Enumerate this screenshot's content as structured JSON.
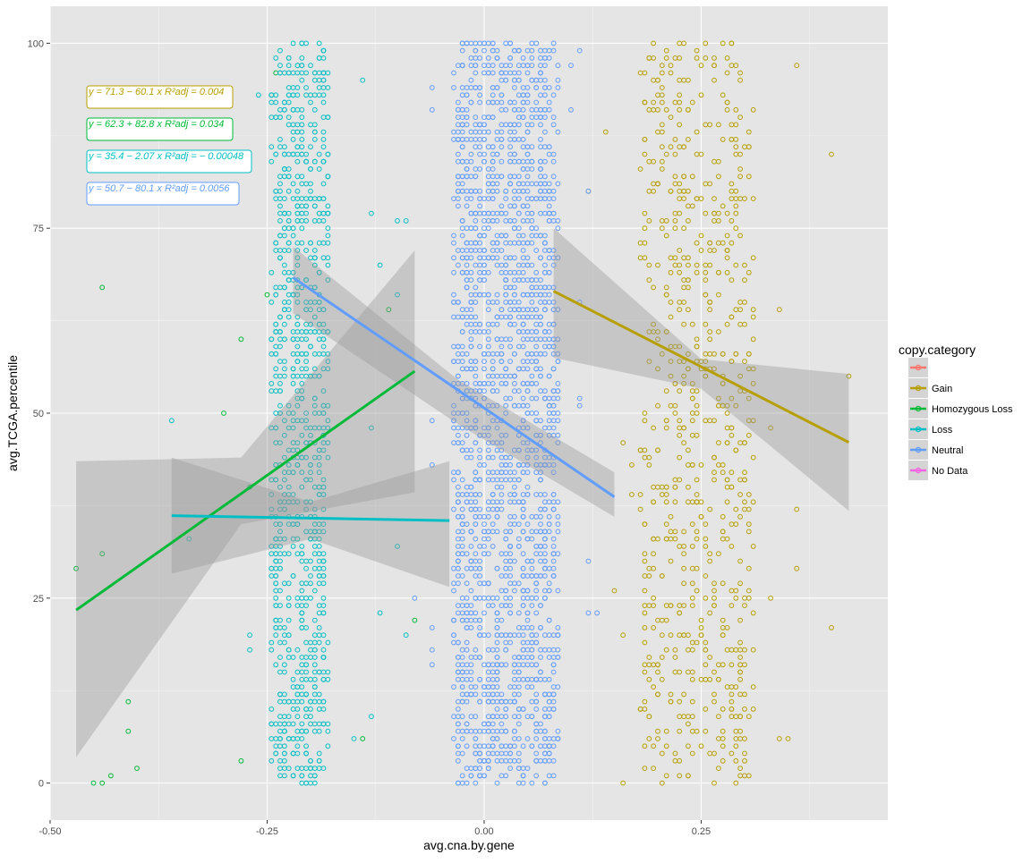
{
  "chart_data": {
    "type": "scatter",
    "xlabel": "avg.cna.by.gene",
    "ylabel": "avg.TCGA.percentile",
    "xlim": [
      -0.5,
      0.465
    ],
    "ylim": [
      -5,
      105
    ],
    "x_ticks": [
      -0.5,
      -0.25,
      0.0,
      0.25
    ],
    "x_tick_labels": [
      "-0.50",
      "-0.25",
      "0.00",
      "0.25"
    ],
    "y_ticks": [
      0,
      25,
      50,
      75,
      100
    ],
    "y_tick_labels": [
      "0",
      "25",
      "50",
      "75",
      "100"
    ],
    "grid": true,
    "background": "#e5e5e5",
    "legend": {
      "title": "copy.category",
      "position": "right",
      "entries": [
        {
          "label": "",
          "color": "#F8766D"
        },
        {
          "label": "Gain",
          "color": "#B79F00"
        },
        {
          "label": "Homozygous Loss",
          "color": "#00BA38"
        },
        {
          "label": "Loss",
          "color": "#00BFC4"
        },
        {
          "label": "Neutral",
          "color": "#619CFF"
        },
        {
          "label": "No Data",
          "color": "#F564E3"
        }
      ]
    },
    "equations": [
      {
        "series": "Gain",
        "eq": "y = 71.3 − 60.1 x",
        "r2_label": "R²adj",
        "r2": "= 0.004"
      },
      {
        "series": "Homozygous Loss",
        "eq": "y = 62.3 + 82.8 x",
        "r2_label": "R²adj",
        "r2": "= 0.034"
      },
      {
        "series": "Loss",
        "eq": "y = 35.4 − 2.07 x",
        "r2_label": "R²adj",
        "r2": "= − 0.00048"
      },
      {
        "series": "Neutral",
        "eq": "y = 50.7 − 80.1 x",
        "r2_label": "R²adj",
        "r2": "= 0.0056"
      }
    ],
    "series": [
      {
        "name": "Gain",
        "color": "#B79F00",
        "fit": {
          "intercept": 71.3,
          "slope": -60.1,
          "x_range": [
            0.08,
            0.42
          ]
        },
        "band": {
          "x": [
            0.08,
            0.25,
            0.42
          ],
          "lo": [
            57.5,
            53.3,
            36.8
          ],
          "hi": [
            75.0,
            57.3,
            55.3
          ]
        },
        "point_cloud": {
          "x_range": [
            0.18,
            0.31
          ],
          "y_range": [
            0,
            100
          ],
          "n": 700
        },
        "points": [
          [
            0.14,
            88
          ],
          [
            0.16,
            46
          ],
          [
            0.12,
            80
          ],
          [
            0.17,
            43
          ],
          [
            0.15,
            26
          ],
          [
            0.16,
            0
          ],
          [
            0.36,
            37
          ],
          [
            0.36,
            97
          ],
          [
            0.4,
            85
          ],
          [
            0.4,
            21
          ],
          [
            0.42,
            55
          ],
          [
            0.36,
            29
          ],
          [
            0.34,
            6
          ],
          [
            0.35,
            6
          ],
          [
            0.3,
            3
          ],
          [
            0.34,
            64
          ],
          [
            0.33,
            48
          ],
          [
            0.33,
            25
          ],
          [
            0.17,
            39
          ],
          [
            0.16,
            20
          ]
        ]
      },
      {
        "name": "Homozygous Loss",
        "color": "#00BA38",
        "fit": {
          "intercept": 62.3,
          "slope": 82.8,
          "x_range": [
            -0.47,
            -0.08
          ]
        },
        "band": {
          "x": [
            -0.47,
            -0.28,
            -0.08
          ],
          "lo": [
            3.5,
            35.0,
            39.3
          ],
          "hi": [
            43.5,
            44.0,
            72.0
          ]
        },
        "points": [
          [
            -0.47,
            29
          ],
          [
            -0.44,
            67
          ],
          [
            -0.44,
            31
          ],
          [
            -0.41,
            11
          ],
          [
            -0.41,
            7
          ],
          [
            -0.4,
            2
          ],
          [
            -0.43,
            1
          ],
          [
            -0.45,
            0
          ],
          [
            -0.44,
            0
          ],
          [
            -0.27,
            40
          ],
          [
            -0.28,
            60
          ],
          [
            -0.28,
            3
          ],
          [
            -0.3,
            50
          ],
          [
            -0.24,
            96
          ],
          [
            -0.11,
            64
          ],
          [
            -0.08,
            22
          ],
          [
            -0.14,
            6
          ],
          [
            -0.2,
            33
          ],
          [
            -0.25,
            66
          ]
        ]
      },
      {
        "name": "Loss",
        "color": "#00BFC4",
        "fit": {
          "intercept": 35.4,
          "slope": -2.07,
          "x_range": [
            -0.36,
            -0.04
          ]
        },
        "band": {
          "x": [
            -0.36,
            -0.2,
            -0.04
          ],
          "lo": [
            28.3,
            33.0,
            26.5
          ],
          "hi": [
            44.0,
            38.0,
            43.5
          ]
        },
        "point_cloud": {
          "x_range": [
            -0.245,
            -0.18
          ],
          "y_range": [
            0,
            100
          ],
          "n": 900
        },
        "points": [
          [
            -0.36,
            49
          ],
          [
            -0.34,
            33
          ],
          [
            -0.13,
            77
          ],
          [
            -0.12,
            70
          ],
          [
            -0.1,
            76
          ],
          [
            -0.09,
            76
          ],
          [
            -0.1,
            66
          ],
          [
            -0.29,
            85
          ],
          [
            -0.26,
            93
          ],
          [
            -0.1,
            32
          ],
          [
            -0.09,
            20
          ],
          [
            -0.12,
            23
          ],
          [
            -0.13,
            48
          ],
          [
            -0.14,
            95
          ],
          [
            -0.27,
            18
          ],
          [
            -0.27,
            20
          ],
          [
            -0.15,
            6
          ],
          [
            -0.13,
            9
          ]
        ]
      },
      {
        "name": "Neutral",
        "color": "#619CFF",
        "fit": {
          "intercept": 50.7,
          "slope": -80.1,
          "x_range": [
            -0.22,
            0.15
          ]
        },
        "band": {
          "x": [
            -0.22,
            -0.03,
            0.15
          ],
          "lo": [
            63.5,
            48.5,
            36.0
          ],
          "hi": [
            72.5,
            54.5,
            42.0
          ]
        },
        "point_cloud": {
          "x_range": [
            -0.035,
            0.085
          ],
          "y_range": [
            0,
            100
          ],
          "n": 2000
        },
        "points": [
          [
            -0.06,
            91
          ],
          [
            -0.06,
            49
          ],
          [
            -0.06,
            43
          ],
          [
            -0.08,
            25
          ],
          [
            -0.06,
            21
          ],
          [
            -0.06,
            18
          ],
          [
            -0.06,
            16
          ],
          [
            -0.06,
            94
          ],
          [
            0.1,
            97
          ],
          [
            0.1,
            91
          ],
          [
            0.11,
            99
          ],
          [
            0.12,
            23
          ],
          [
            0.13,
            23
          ],
          [
            0.12,
            80
          ],
          [
            0.11,
            51
          ],
          [
            0.11,
            52
          ],
          [
            0.11,
            65
          ],
          [
            0.12,
            30
          ]
        ]
      }
    ]
  }
}
